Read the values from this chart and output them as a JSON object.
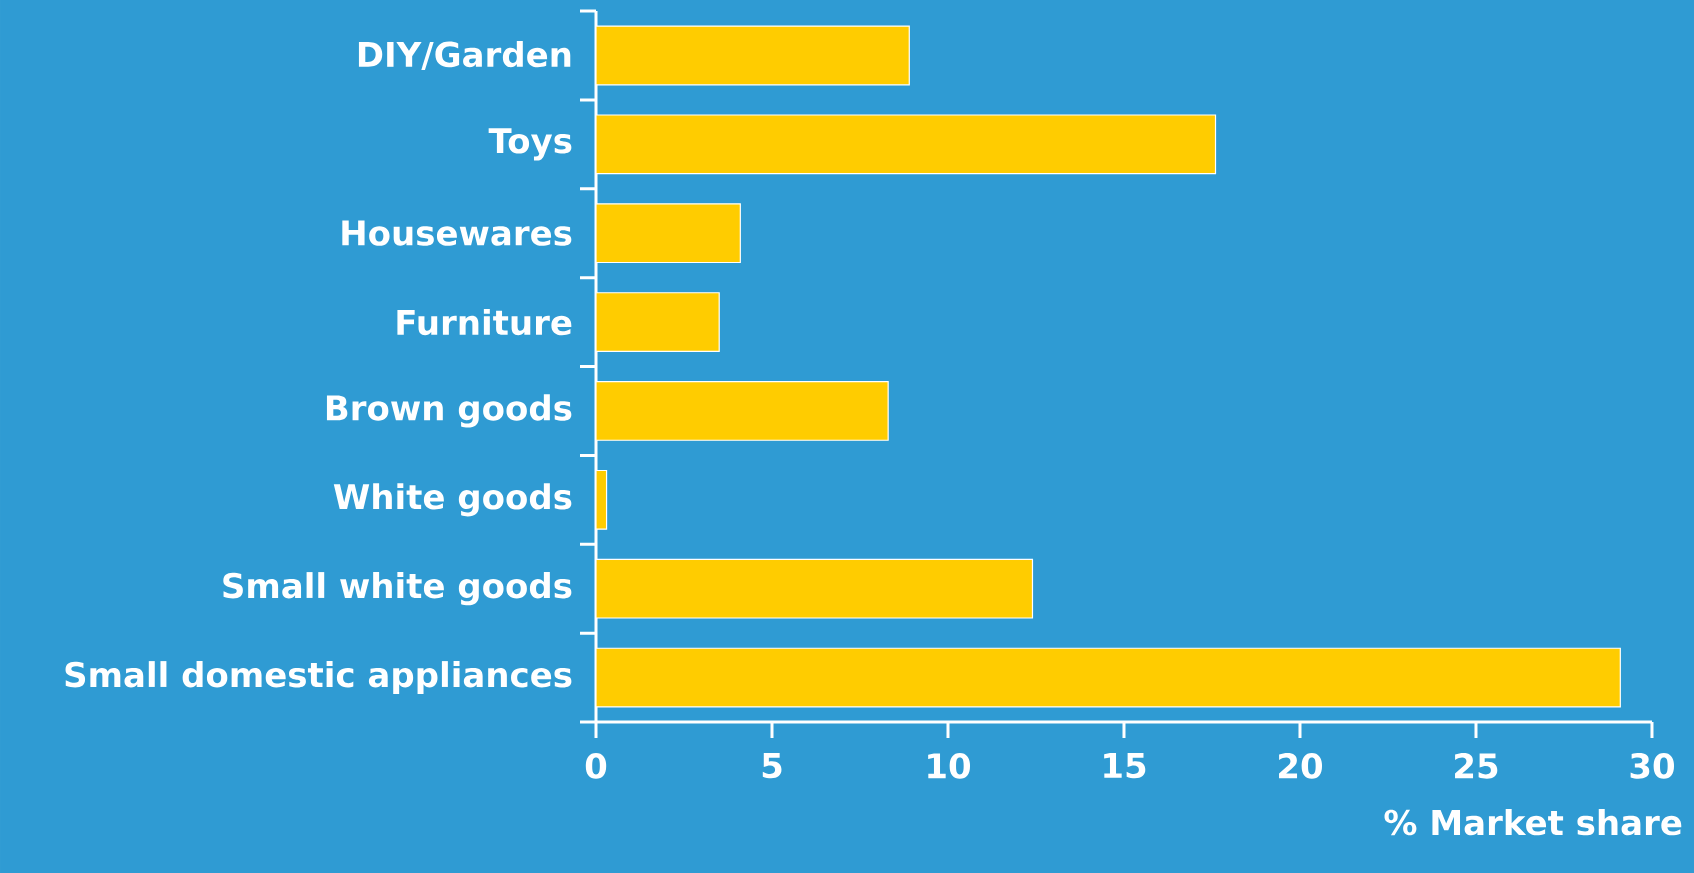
{
  "chart_data": {
    "type": "bar",
    "orientation": "horizontal",
    "xlabel": "% Market share",
    "categories": [
      "DIY/Garden",
      "Toys",
      "Housewares",
      "Furniture",
      "Brown goods",
      "White goods",
      "Small white goods",
      "Small domestic appliances"
    ],
    "values": [
      8.9,
      17.6,
      4.1,
      3.5,
      8.3,
      0.3,
      12.4,
      29.1
    ],
    "color": "#ffcc00",
    "xlim": [
      0,
      30
    ],
    "xticks": [
      0,
      5,
      10,
      15,
      20,
      25,
      30
    ]
  }
}
